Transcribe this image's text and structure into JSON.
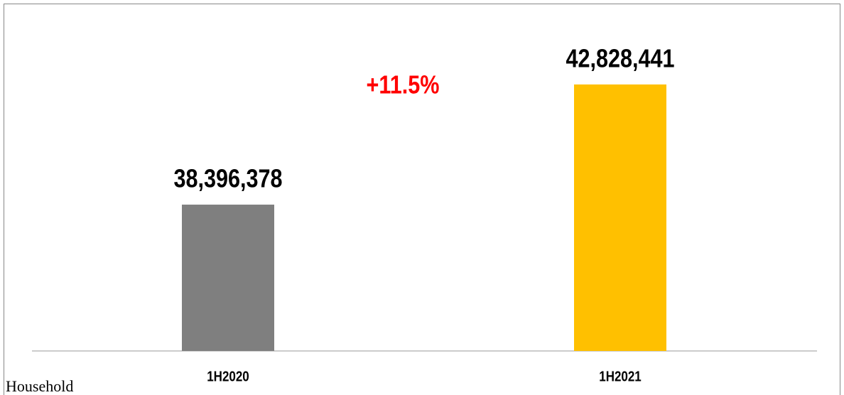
{
  "chart_data": {
    "type": "bar",
    "categories": [
      "1H2020",
      "1H2021"
    ],
    "values": [
      38396378,
      42828441
    ],
    "value_labels": [
      "38,396,378",
      "42,828,441"
    ],
    "colors": [
      "#7f7f7f",
      "#ffc000"
    ],
    "ylim": [
      33000000,
      45000000
    ],
    "annotation": "+11.5%",
    "label": "Household"
  }
}
